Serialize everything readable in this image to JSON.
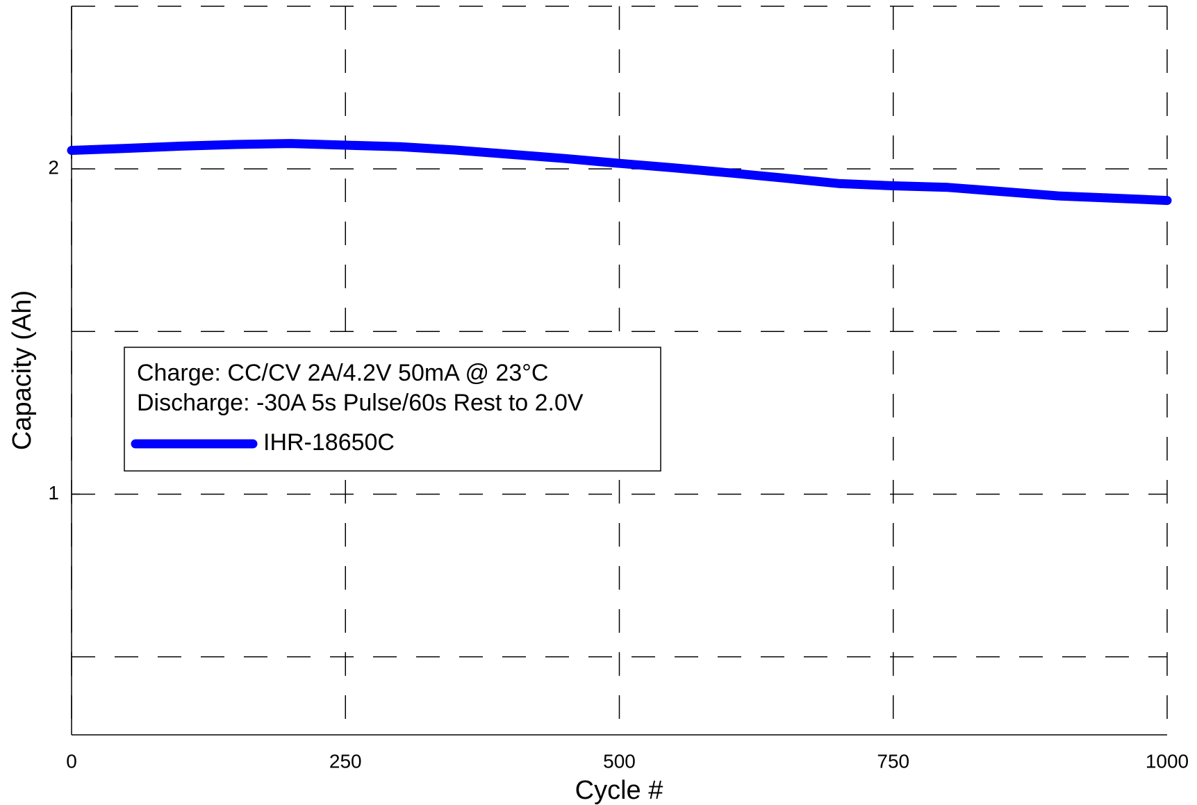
{
  "chart_data": {
    "type": "line",
    "x_label": "Cycle #",
    "y_label": "Capacity (Ah)",
    "annotations": [
      "Charge: CC/CV 2A/4.2V 50mA @ 23°C",
      "Discharge: -30A 5s Pulse/60s Rest to 2.0V"
    ],
    "x": [
      0,
      50,
      100,
      150,
      200,
      250,
      300,
      350,
      400,
      450,
      500,
      550,
      600,
      650,
      700,
      750,
      800,
      850,
      900,
      950,
      1000
    ],
    "series": [
      {
        "name": "IHR-18650C",
        "color": "#0000ff",
        "values": [
          2.057,
          2.063,
          2.07,
          2.075,
          2.078,
          2.073,
          2.068,
          2.058,
          2.045,
          2.032,
          2.017,
          2.003,
          1.988,
          1.972,
          1.955,
          1.948,
          1.943,
          1.93,
          1.917,
          1.91,
          1.903
        ]
      }
    ],
    "xlim": [
      0,
      1000
    ],
    "xticks": [
      0,
      250,
      500,
      750,
      1000
    ],
    "ylim": [
      0.26,
      2.5
    ],
    "yticks": [
      1,
      2
    ],
    "y_gridlines": [
      0.5,
      1,
      1.5,
      2,
      2.5
    ],
    "grid": true
  }
}
